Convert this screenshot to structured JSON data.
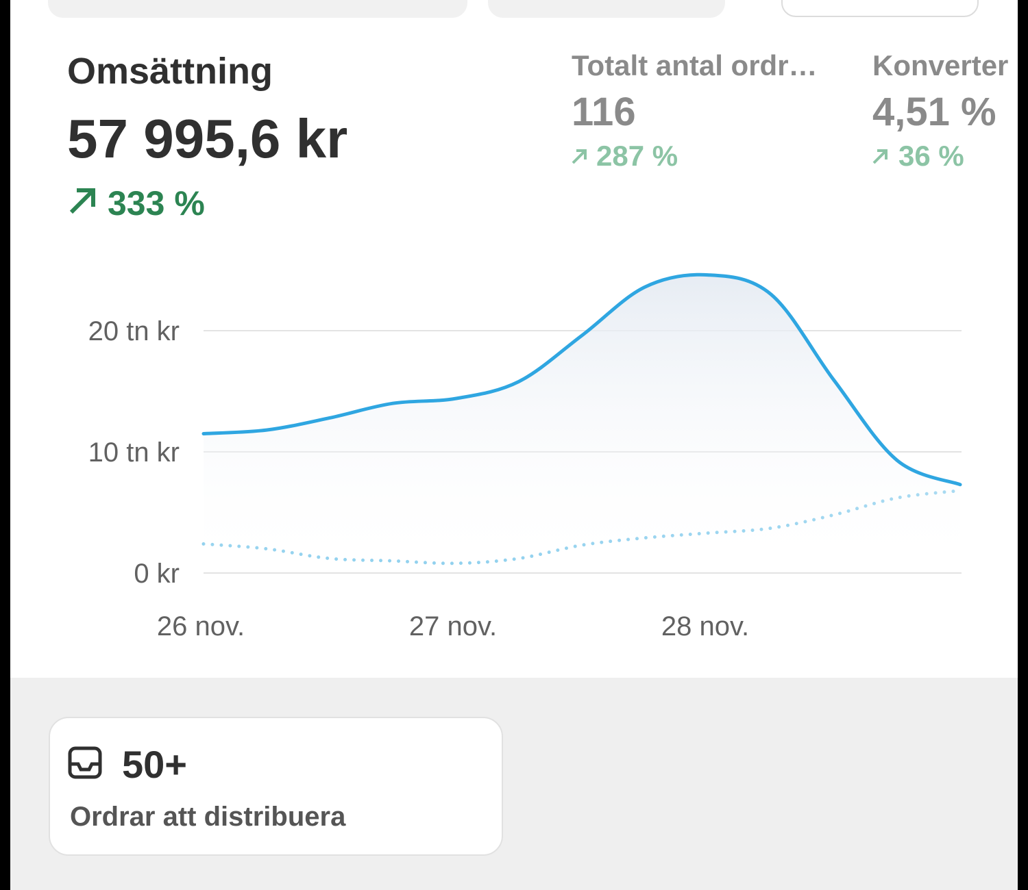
{
  "metrics": [
    {
      "title": "Omsättning",
      "value": "57 995,6 kr",
      "change": "333 %"
    },
    {
      "title": "Totalt antal ordr…",
      "value": "116",
      "change": "287 %"
    },
    {
      "title": "Konverter",
      "value": "4,51 %",
      "change": "36 %"
    }
  ],
  "chart_data": {
    "type": "line",
    "categories": [
      "26 nov.",
      null,
      null,
      null,
      "27 nov.",
      null,
      null,
      null,
      "28 nov.",
      null,
      null,
      null,
      null
    ],
    "series": [
      {
        "color": "#2fa6e1",
        "values": [
          11.5,
          11.8,
          12.8,
          14.0,
          14.4,
          15.8,
          19.6,
          23.6,
          24.6,
          23.0,
          15.9,
          9.3,
          7.3
        ]
      },
      {
        "color": "#8fd0ee",
        "style": "dotted",
        "values": [
          2.4,
          2.0,
          1.2,
          1.0,
          0.8,
          1.2,
          2.3,
          2.9,
          3.3,
          3.7,
          4.8,
          6.2,
          6.8
        ]
      }
    ],
    "ylim": [
      0,
      25
    ],
    "yticks": [
      {
        "value": 0,
        "label": "0 kr"
      },
      {
        "value": 10,
        "label": "10 tn kr"
      },
      {
        "value": 20,
        "label": "20 tn kr"
      }
    ],
    "grid": true
  },
  "card": {
    "value": "50+",
    "label": "Ordrar att distribuera"
  }
}
